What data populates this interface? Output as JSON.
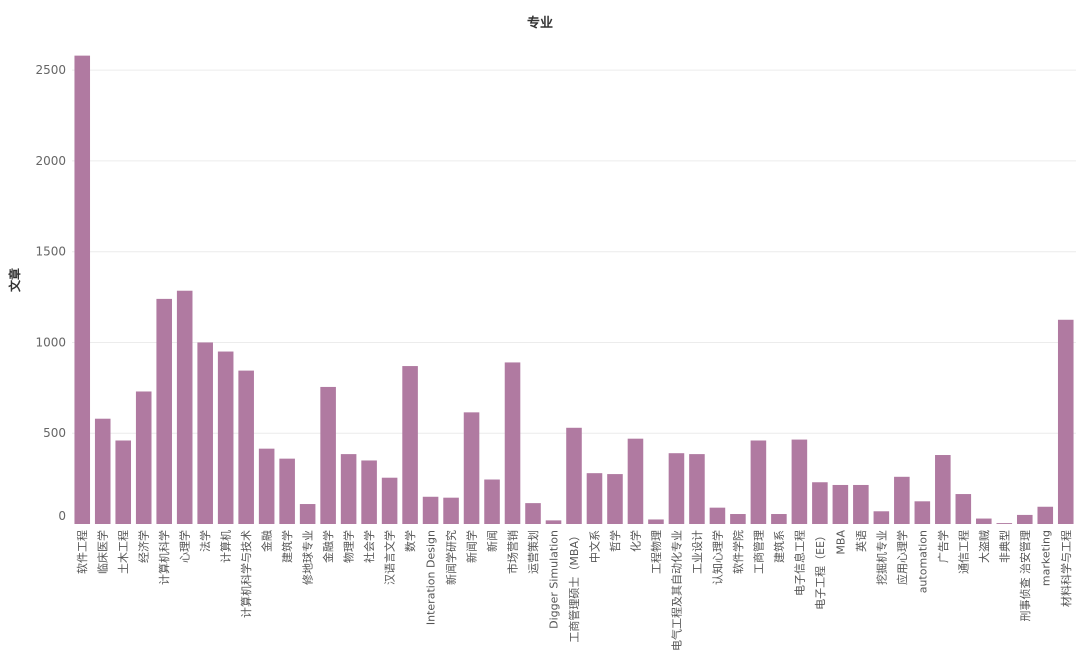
{
  "chart_data": {
    "type": "bar",
    "title": "专业",
    "xlabel": "",
    "ylabel": "文章",
    "ylim": [
      0,
      2600
    ],
    "yticks": [
      0,
      500,
      1000,
      1500,
      2000,
      2500
    ],
    "grid": true,
    "bar_color": "#b07aa1",
    "categories": [
      "软件工程",
      "临床医学",
      "土木工程",
      "经济学",
      "计算机科学",
      "心理学",
      "法学",
      "计算机",
      "计算机科学与技术",
      "金融",
      "建筑学",
      "修地球专业",
      "金融学",
      "物理学",
      "社会学",
      "汉语言文学",
      "数学",
      "Interation Design",
      "新闻学研究",
      "新闻学",
      "新闻",
      "市场营销",
      "运营策划",
      "Digger Simulation",
      "工商管理硕士（MBA）",
      "中文系",
      "哲学",
      "化学",
      "工程物理",
      "电气工程及其自动化专业",
      "工业设计",
      "认知心理学",
      "软件学院",
      "工商管理",
      "建筑系",
      "电子信息工程",
      "电子工程（EE）",
      "MBA",
      "英语",
      "挖掘机专业",
      "应用心理学",
      "automation",
      "广告学",
      "通信工程",
      "大盗贼",
      "非典型",
      "刑事侦查 治安管理",
      "marketing",
      "材料科学与工程"
    ],
    "values": [
      2580,
      580,
      460,
      730,
      1240,
      1285,
      1000,
      950,
      845,
      415,
      360,
      110,
      755,
      385,
      350,
      255,
      870,
      150,
      145,
      615,
      245,
      890,
      115,
      20,
      530,
      280,
      275,
      470,
      25,
      390,
      385,
      90,
      55,
      460,
      55,
      465,
      230,
      215,
      215,
      70,
      260,
      125,
      380,
      165,
      30,
      5,
      50,
      95,
      1125
    ]
  }
}
